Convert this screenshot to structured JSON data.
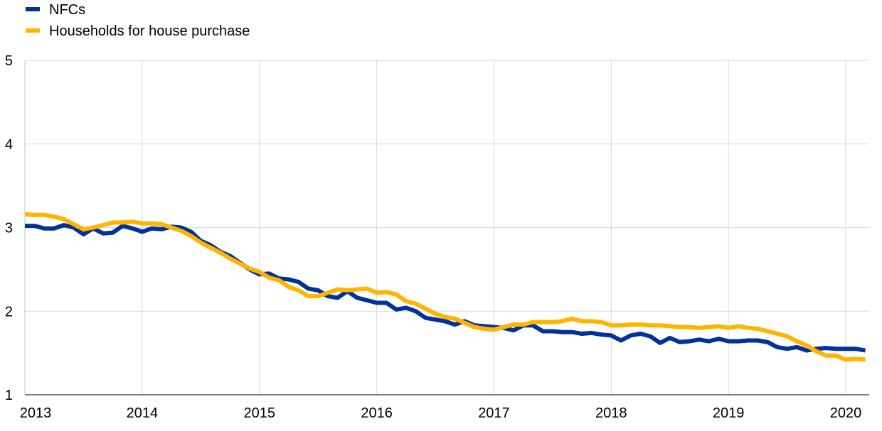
{
  "chart_data": {
    "type": "line",
    "title": "",
    "xlabel": "",
    "ylabel": "",
    "ylim": [
      1,
      5
    ],
    "yticks": [
      1,
      2,
      3,
      4,
      5
    ],
    "xlim": [
      2013.0,
      2020.2
    ],
    "xticks": [
      "2013",
      "2014",
      "2015",
      "2016",
      "2017",
      "2018",
      "2019",
      "2020"
    ],
    "grid": true,
    "legend_position": "top-left",
    "series": [
      {
        "name": "NFCs",
        "color": "#003299",
        "x": [
          2013.0,
          2013.083,
          2013.167,
          2013.25,
          2013.333,
          2013.417,
          2013.5,
          2013.583,
          2013.667,
          2013.75,
          2013.833,
          2013.917,
          2014.0,
          2014.083,
          2014.167,
          2014.25,
          2014.333,
          2014.417,
          2014.5,
          2014.583,
          2014.667,
          2014.75,
          2014.833,
          2014.917,
          2015.0,
          2015.083,
          2015.167,
          2015.25,
          2015.333,
          2015.417,
          2015.5,
          2015.583,
          2015.667,
          2015.75,
          2015.833,
          2015.917,
          2016.0,
          2016.083,
          2016.167,
          2016.25,
          2016.333,
          2016.417,
          2016.5,
          2016.583,
          2016.667,
          2016.75,
          2016.833,
          2016.917,
          2017.0,
          2017.083,
          2017.167,
          2017.25,
          2017.333,
          2017.417,
          2017.5,
          2017.583,
          2017.667,
          2017.75,
          2017.833,
          2017.917,
          2018.0,
          2018.083,
          2018.167,
          2018.25,
          2018.333,
          2018.417,
          2018.5,
          2018.583,
          2018.667,
          2018.75,
          2018.833,
          2018.917,
          2019.0,
          2019.083,
          2019.167,
          2019.25,
          2019.333,
          2019.417,
          2019.5,
          2019.583,
          2019.667,
          2019.75,
          2019.833,
          2019.917,
          2020.0,
          2020.083,
          2020.167
        ],
        "values": [
          3.02,
          3.02,
          2.99,
          2.99,
          3.03,
          3.0,
          2.92,
          2.99,
          2.93,
          2.94,
          3.02,
          2.99,
          2.95,
          2.99,
          2.98,
          3.01,
          3.0,
          2.95,
          2.84,
          2.79,
          2.71,
          2.66,
          2.58,
          2.5,
          2.44,
          2.45,
          2.39,
          2.38,
          2.35,
          2.27,
          2.25,
          2.18,
          2.16,
          2.24,
          2.16,
          2.13,
          2.1,
          2.1,
          2.02,
          2.04,
          2.0,
          1.92,
          1.9,
          1.88,
          1.84,
          1.88,
          1.83,
          1.82,
          1.81,
          1.8,
          1.77,
          1.83,
          1.83,
          1.76,
          1.76,
          1.75,
          1.75,
          1.73,
          1.74,
          1.72,
          1.71,
          1.65,
          1.71,
          1.73,
          1.7,
          1.62,
          1.68,
          1.63,
          1.64,
          1.66,
          1.64,
          1.67,
          1.64,
          1.64,
          1.65,
          1.65,
          1.63,
          1.57,
          1.55,
          1.57,
          1.53,
          1.55,
          1.56,
          1.55,
          1.55,
          1.55,
          1.53
        ]
      },
      {
        "name": "Households for house purchase",
        "color": "#FFB400",
        "x": [
          2013.0,
          2013.083,
          2013.167,
          2013.25,
          2013.333,
          2013.417,
          2013.5,
          2013.583,
          2013.667,
          2013.75,
          2013.833,
          2013.917,
          2014.0,
          2014.083,
          2014.167,
          2014.25,
          2014.333,
          2014.417,
          2014.5,
          2014.583,
          2014.667,
          2014.75,
          2014.833,
          2014.917,
          2015.0,
          2015.083,
          2015.167,
          2015.25,
          2015.333,
          2015.417,
          2015.5,
          2015.583,
          2015.667,
          2015.75,
          2015.833,
          2015.917,
          2016.0,
          2016.083,
          2016.167,
          2016.25,
          2016.333,
          2016.417,
          2016.5,
          2016.583,
          2016.667,
          2016.75,
          2016.833,
          2016.917,
          2017.0,
          2017.083,
          2017.167,
          2017.25,
          2017.333,
          2017.417,
          2017.5,
          2017.583,
          2017.667,
          2017.75,
          2017.833,
          2017.917,
          2018.0,
          2018.083,
          2018.167,
          2018.25,
          2018.333,
          2018.417,
          2018.5,
          2018.583,
          2018.667,
          2018.75,
          2018.833,
          2018.917,
          2019.0,
          2019.083,
          2019.167,
          2019.25,
          2019.333,
          2019.417,
          2019.5,
          2019.583,
          2019.667,
          2019.75,
          2019.833,
          2019.917,
          2020.0,
          2020.083,
          2020.167
        ],
        "values": [
          3.16,
          3.15,
          3.15,
          3.13,
          3.1,
          3.04,
          2.98,
          3.0,
          3.03,
          3.06,
          3.06,
          3.07,
          3.05,
          3.05,
          3.04,
          3.0,
          2.96,
          2.9,
          2.82,
          2.76,
          2.7,
          2.63,
          2.57,
          2.51,
          2.47,
          2.4,
          2.37,
          2.29,
          2.25,
          2.18,
          2.18,
          2.22,
          2.26,
          2.25,
          2.26,
          2.27,
          2.22,
          2.23,
          2.2,
          2.12,
          2.09,
          2.03,
          1.97,
          1.93,
          1.91,
          1.86,
          1.81,
          1.79,
          1.78,
          1.81,
          1.84,
          1.84,
          1.87,
          1.87,
          1.87,
          1.88,
          1.91,
          1.88,
          1.88,
          1.87,
          1.83,
          1.83,
          1.84,
          1.84,
          1.83,
          1.83,
          1.82,
          1.81,
          1.81,
          1.8,
          1.81,
          1.82,
          1.8,
          1.82,
          1.8,
          1.79,
          1.76,
          1.73,
          1.7,
          1.64,
          1.59,
          1.52,
          1.47,
          1.47,
          1.42,
          1.43,
          1.42
        ]
      }
    ]
  }
}
